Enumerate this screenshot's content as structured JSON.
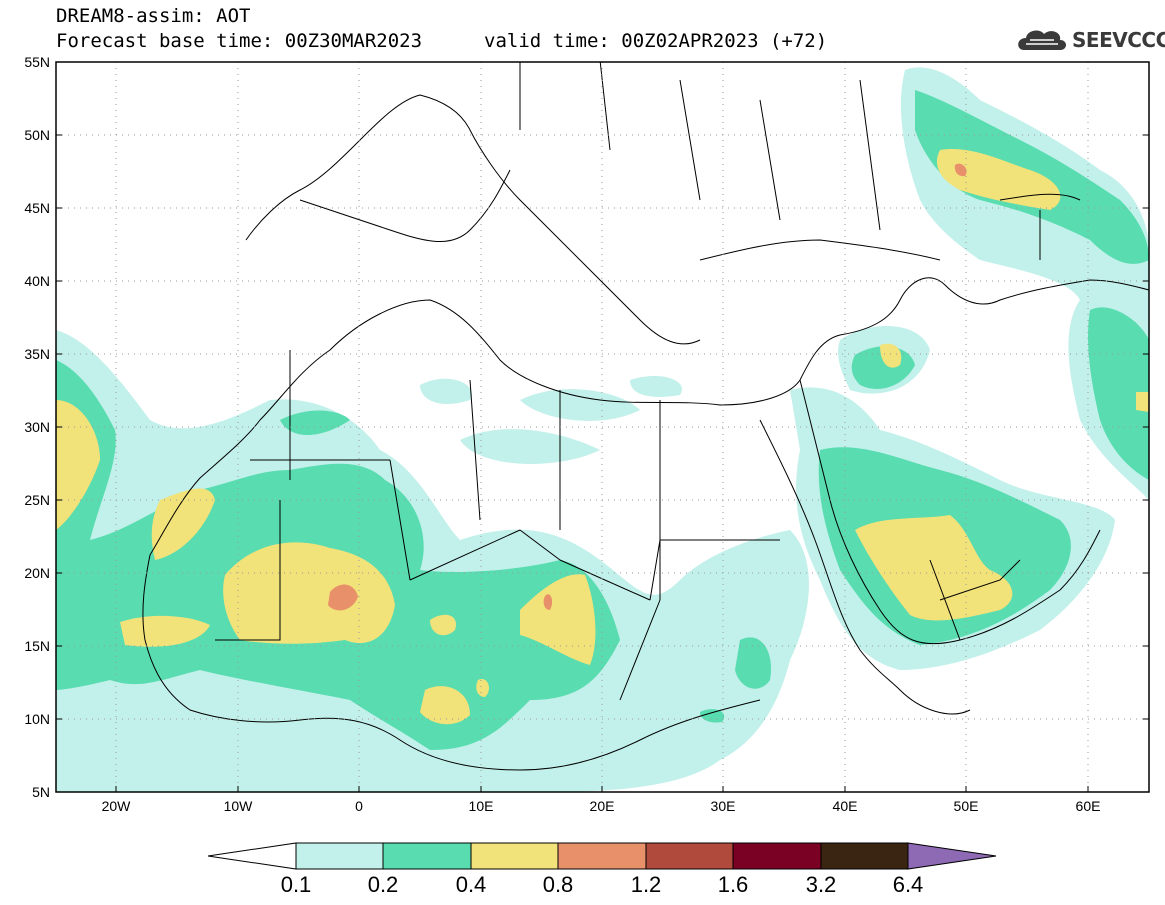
{
  "header": {
    "line1": "DREAM8-assim: AOT",
    "line2": "Forecast base time: 00Z30MAR2023",
    "valid": "valid time: 00Z02APR2023 (+72)",
    "logo": "SEEVCCC"
  },
  "axes": {
    "lat_labels": [
      "55N",
      "50N",
      "45N",
      "40N",
      "35N",
      "30N",
      "25N",
      "20N",
      "15N",
      "10N",
      "5N"
    ],
    "lon_labels": [
      "20W",
      "10W",
      "0",
      "10E",
      "20E",
      "30E",
      "40E",
      "50E",
      "60E"
    ],
    "lon_range": [
      -25,
      65
    ],
    "lat_range": [
      5,
      55
    ]
  },
  "colorbar": {
    "labels": [
      "0.1",
      "0.2",
      "0.4",
      "0.8",
      "1.2",
      "1.6",
      "3.2",
      "6.4"
    ],
    "colors": [
      "#c2f0ea",
      "#58dcb0",
      "#f2e27a",
      "#e8906a",
      "#b04a3c",
      "#7a0024",
      "#3a2412",
      "#8e6ab4"
    ],
    "under_color": "#ffffff"
  },
  "field_colors": {
    "c01": "#c2f0ea",
    "c02": "#58dcb0",
    "c04": "#f2e27a",
    "c08": "#e8906a"
  }
}
